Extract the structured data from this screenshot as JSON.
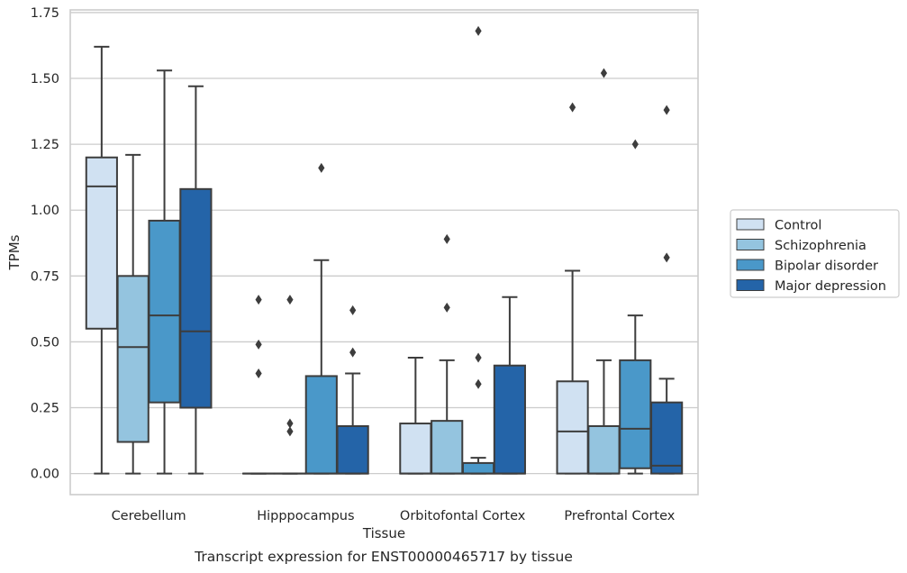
{
  "chart_data": {
    "type": "box",
    "caption": "Transcript expression for ENST00000465717 by tissue",
    "xlabel": "Tissue",
    "ylabel": "TPMs",
    "ylim": [
      -0.08,
      1.76
    ],
    "yticks": [
      "0.00",
      "0.25",
      "0.50",
      "0.75",
      "1.00",
      "1.25",
      "1.50",
      "1.75"
    ],
    "ytick_values": [
      0,
      0.25,
      0.5,
      0.75,
      1.0,
      1.25,
      1.5,
      1.75
    ],
    "grid": "horizontal",
    "legend_position": "right",
    "categories": [
      "Cerebellum",
      "Hipppocampus",
      "Orbitofontal Cortex",
      "Prefrontal Cortex"
    ],
    "series": [
      {
        "name": "Control",
        "color": "#d0e1f2",
        "boxes": [
          {
            "whisker_low": 0.0,
            "q1": 0.55,
            "median": 1.09,
            "q3": 1.2,
            "whisker_high": 1.62,
            "outliers": []
          },
          {
            "whisker_low": 0.0,
            "q1": 0.0,
            "median": 0.0,
            "q3": 0.0,
            "whisker_high": 0.0,
            "outliers": [
              0.66,
              0.49,
              0.38
            ]
          },
          {
            "whisker_low": 0.0,
            "q1": 0.0,
            "median": 0.0,
            "q3": 0.19,
            "whisker_high": 0.44,
            "outliers": []
          },
          {
            "whisker_low": 0.0,
            "q1": 0.0,
            "median": 0.16,
            "q3": 0.35,
            "whisker_high": 0.77,
            "outliers": [
              1.39
            ]
          }
        ]
      },
      {
        "name": "Schizophrenia",
        "color": "#94c4df",
        "boxes": [
          {
            "whisker_low": 0.0,
            "q1": 0.12,
            "median": 0.48,
            "q3": 0.75,
            "whisker_high": 1.21,
            "outliers": []
          },
          {
            "whisker_low": 0.0,
            "q1": 0.0,
            "median": 0.0,
            "q3": 0.0,
            "whisker_high": 0.0,
            "outliers": [
              0.66,
              0.19,
              0.16
            ]
          },
          {
            "whisker_low": 0.0,
            "q1": 0.0,
            "median": 0.0,
            "q3": 0.2,
            "whisker_high": 0.43,
            "outliers": [
              0.89,
              0.63
            ]
          },
          {
            "whisker_low": 0.0,
            "q1": 0.0,
            "median": 0.0,
            "q3": 0.18,
            "whisker_high": 0.43,
            "outliers": [
              1.52
            ]
          }
        ]
      },
      {
        "name": "Bipolar disorder",
        "color": "#4a98c9",
        "boxes": [
          {
            "whisker_low": 0.0,
            "q1": 0.27,
            "median": 0.6,
            "q3": 0.96,
            "whisker_high": 1.53,
            "outliers": []
          },
          {
            "whisker_low": 0.0,
            "q1": 0.0,
            "median": 0.0,
            "q3": 0.37,
            "whisker_high": 0.81,
            "outliers": [
              1.16
            ]
          },
          {
            "whisker_low": 0.0,
            "q1": 0.0,
            "median": 0.0,
            "q3": 0.04,
            "whisker_high": 0.06,
            "outliers": [
              1.68,
              0.44,
              0.34
            ]
          },
          {
            "whisker_low": 0.0,
            "q1": 0.02,
            "median": 0.17,
            "q3": 0.43,
            "whisker_high": 0.6,
            "outliers": [
              1.25
            ]
          }
        ]
      },
      {
        "name": "Major depression",
        "color": "#2464a8",
        "boxes": [
          {
            "whisker_low": 0.0,
            "q1": 0.25,
            "median": 0.54,
            "q3": 1.08,
            "whisker_high": 1.47,
            "outliers": []
          },
          {
            "whisker_low": 0.0,
            "q1": 0.0,
            "median": 0.0,
            "q3": 0.18,
            "whisker_high": 0.38,
            "outliers": [
              0.62,
              0.46
            ]
          },
          {
            "whisker_low": 0.0,
            "q1": 0.0,
            "median": 0.0,
            "q3": 0.41,
            "whisker_high": 0.67,
            "outliers": []
          },
          {
            "whisker_low": 0.0,
            "q1": 0.0,
            "median": 0.03,
            "q3": 0.27,
            "whisker_high": 0.36,
            "outliers": [
              1.38,
              0.82
            ]
          }
        ]
      }
    ]
  }
}
